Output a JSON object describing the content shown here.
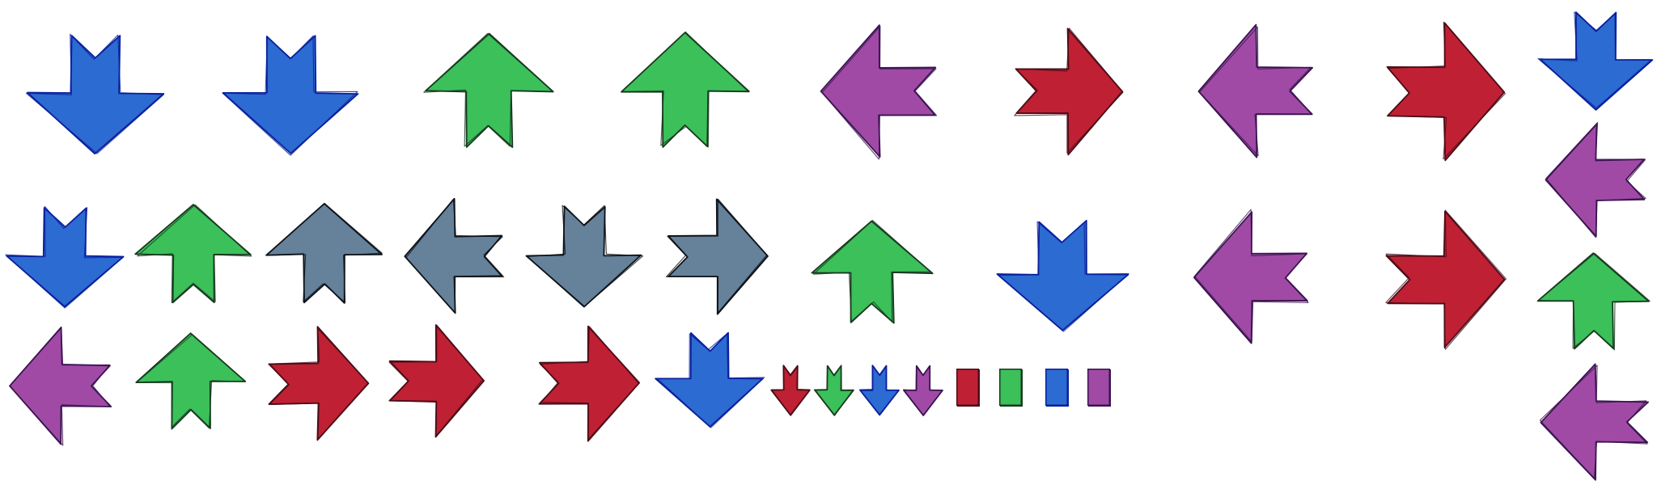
{
  "colors": {
    "blue": "#2c6bd1",
    "green": "#3cc05a",
    "purple": "#a04aa6",
    "red": "#c02033",
    "slate": "#66819a"
  },
  "outline_colors": {
    "blue": "#0a1f9c",
    "green": "#17391f",
    "purple": "#3a1450",
    "red": "#4a0d18",
    "slate": "#0d1218"
  },
  "sprites": [
    {
      "name": "arrow-down-blue-1",
      "shape": "arrow",
      "direction": "down",
      "color": "blue"
    },
    {
      "name": "arrow-down-blue-2",
      "shape": "arrow",
      "direction": "down",
      "color": "blue"
    },
    {
      "name": "arrow-up-green-1",
      "shape": "arrow",
      "direction": "up",
      "color": "green"
    },
    {
      "name": "arrow-up-green-2",
      "shape": "arrow",
      "direction": "up",
      "color": "green"
    },
    {
      "name": "arrow-left-purple-1",
      "shape": "arrow",
      "direction": "left",
      "color": "purple"
    },
    {
      "name": "arrow-right-red-1",
      "shape": "arrow",
      "direction": "right",
      "color": "red"
    },
    {
      "name": "arrow-left-purple-2",
      "shape": "arrow",
      "direction": "left",
      "color": "purple"
    },
    {
      "name": "arrow-right-red-2",
      "shape": "arrow",
      "direction": "right",
      "color": "red"
    },
    {
      "name": "arrow-down-blue-column",
      "shape": "arrow",
      "direction": "down",
      "color": "blue"
    },
    {
      "name": "arrow-left-purple-column-1",
      "shape": "arrow",
      "direction": "left",
      "color": "purple"
    },
    {
      "name": "arrow-down-blue-small",
      "shape": "arrow",
      "direction": "down",
      "color": "blue"
    },
    {
      "name": "arrow-up-green-small",
      "shape": "arrow",
      "direction": "up",
      "color": "green"
    },
    {
      "name": "arrow-up-slate",
      "shape": "arrow",
      "direction": "up",
      "color": "slate"
    },
    {
      "name": "arrow-left-slate",
      "shape": "arrow",
      "direction": "left",
      "color": "slate"
    },
    {
      "name": "arrow-down-slate",
      "shape": "arrow",
      "direction": "down",
      "color": "slate"
    },
    {
      "name": "arrow-right-slate",
      "shape": "arrow",
      "direction": "right",
      "color": "slate"
    },
    {
      "name": "arrow-up-green-mid",
      "shape": "arrow",
      "direction": "up",
      "color": "green"
    },
    {
      "name": "arrow-down-blue-mid",
      "shape": "arrow",
      "direction": "down",
      "color": "blue"
    },
    {
      "name": "arrow-left-purple-3",
      "shape": "arrow",
      "direction": "left",
      "color": "purple"
    },
    {
      "name": "arrow-right-red-3",
      "shape": "arrow",
      "direction": "right",
      "color": "red"
    },
    {
      "name": "arrow-up-green-column",
      "shape": "arrow",
      "direction": "up",
      "color": "green"
    },
    {
      "name": "arrow-left-purple-row3",
      "shape": "arrow",
      "direction": "left",
      "color": "purple"
    },
    {
      "name": "arrow-up-green-row3",
      "shape": "arrow",
      "direction": "up",
      "color": "green"
    },
    {
      "name": "arrow-right-red-row3-1",
      "shape": "arrow",
      "direction": "right",
      "color": "red"
    },
    {
      "name": "arrow-right-red-row3-2",
      "shape": "arrow",
      "direction": "right",
      "color": "red"
    },
    {
      "name": "arrow-right-red-row3-3",
      "shape": "arrow",
      "direction": "right",
      "color": "red"
    },
    {
      "name": "arrow-down-blue-row3",
      "shape": "arrow",
      "direction": "down",
      "color": "blue"
    },
    {
      "name": "arrow-down-red-tiny",
      "shape": "arrow",
      "direction": "down",
      "color": "red"
    },
    {
      "name": "arrow-down-green-tiny",
      "shape": "arrow",
      "direction": "down",
      "color": "green"
    },
    {
      "name": "arrow-down-blue-tiny",
      "shape": "arrow",
      "direction": "down",
      "color": "blue"
    },
    {
      "name": "arrow-down-purple-tiny",
      "shape": "arrow",
      "direction": "down",
      "color": "purple"
    },
    {
      "name": "bar-red",
      "shape": "bar",
      "color": "red"
    },
    {
      "name": "bar-green",
      "shape": "bar",
      "color": "green"
    },
    {
      "name": "bar-blue",
      "shape": "bar",
      "color": "blue"
    },
    {
      "name": "bar-purple",
      "shape": "bar",
      "color": "purple"
    },
    {
      "name": "arrow-left-purple-column-2",
      "shape": "arrow",
      "direction": "left",
      "color": "purple"
    }
  ]
}
